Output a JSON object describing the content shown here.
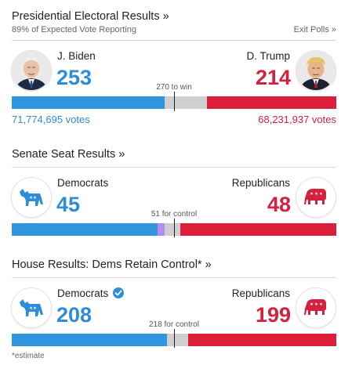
{
  "presidential": {
    "title": "Presidential Electoral Results",
    "title_arrow": "»",
    "subtitle": "89% of Expected Vote Reporting",
    "exit_polls": "Exit Polls",
    "exit_polls_arrow": "»",
    "dem_name": "J. Biden",
    "rep_name": "D. Trump",
    "dem_count": "253",
    "rep_count": "214",
    "threshold_label": "270 to win",
    "dem_votes": "71,774,695 votes",
    "rep_votes": "68,231,937 votes",
    "bar": {
      "total": 538,
      "dem": 253,
      "rep": 214,
      "other": 0,
      "threshold": 270
    }
  },
  "senate": {
    "title": "Senate Seat Results",
    "title_arrow": "»",
    "dem_name": "Democrats",
    "rep_name": "Republicans",
    "dem_count": "45",
    "rep_count": "48",
    "threshold_label": "51 for control",
    "bar": {
      "total": 100,
      "dem": 45,
      "rep": 48,
      "other": 2,
      "threshold": 51
    }
  },
  "house": {
    "title": "House Results: Dems Retain Control*",
    "title_arrow": "»",
    "dem_name": "Democrats",
    "rep_name": "Republicans",
    "dem_count": "208",
    "rep_count": "199",
    "threshold_label": "218 for control",
    "bar": {
      "total": 435,
      "dem": 208,
      "rep": 199,
      "other": 0,
      "threshold": 218
    }
  },
  "footnote": "*estimate",
  "colors": {
    "dem": "#2f95dc",
    "rep": "#dc1e3b",
    "other": "#b58df0",
    "undecided": "#cfcfcf"
  },
  "icons": {
    "dem_party": "donkey-icon",
    "rep_party": "elephant-icon",
    "winner": "checkmark-icon"
  }
}
